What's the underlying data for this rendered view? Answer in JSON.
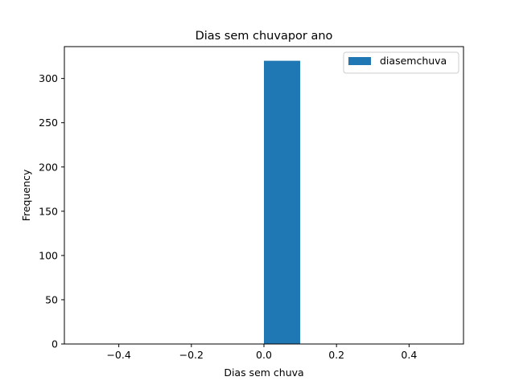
{
  "chart_data": {
    "type": "bar",
    "title": "Dias sem chuvapor ano",
    "xlabel": "Dias sem chuva",
    "ylabel": "Frequency",
    "xlim": [
      -0.55,
      0.55
    ],
    "ylim": [
      0,
      336
    ],
    "xticks": [
      -0.4,
      -0.2,
      0.0,
      0.2,
      0.4
    ],
    "xtick_labels": [
      "−0.4",
      "−0.2",
      "0.0",
      "0.2",
      "0.4"
    ],
    "yticks": [
      0,
      50,
      100,
      150,
      200,
      250,
      300
    ],
    "ytick_labels": [
      "0",
      "50",
      "100",
      "150",
      "200",
      "250",
      "300"
    ],
    "grid": false,
    "legend_position": "top-right",
    "series": [
      {
        "name": "diasemchuva",
        "color": "#1f77b4",
        "bins": [
          {
            "x0": 0.0,
            "x1": 0.1,
            "value": 320
          }
        ]
      }
    ]
  }
}
